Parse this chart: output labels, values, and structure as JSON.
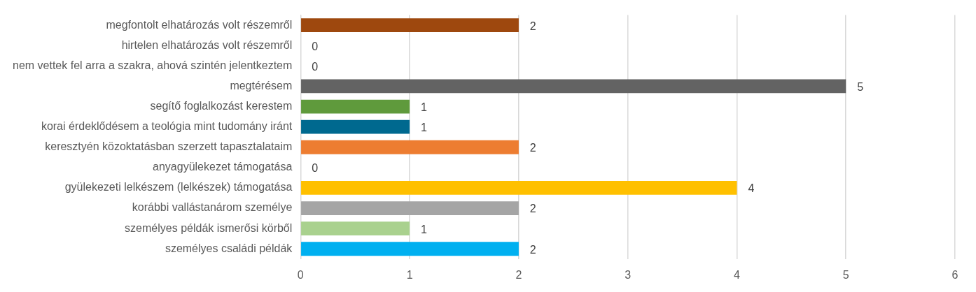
{
  "chart_data": {
    "type": "bar",
    "orientation": "horizontal",
    "categories": [
      "megfontolt elhatározás volt részemről",
      "hirtelen elhatározás volt részemről",
      "nem vettek fel arra a szakra, ahová szintén jelentkeztem",
      "megtérésem",
      "segítő foglalkozást kerestem",
      "korai érdeklődésem a teológia mint tudomány iránt",
      "keresztyén közoktatásban szerzett tapasztalataim",
      "anyagyülekezet támogatása",
      "gyülekezeti lelkészem (lelkészek) támogatása",
      "korábbi vallástanárom személye",
      "személyes példák ismerősi körből",
      "személyes családi példák"
    ],
    "values": [
      2,
      0,
      0,
      5,
      1,
      1,
      2,
      0,
      4,
      2,
      1,
      2
    ],
    "colors": [
      "#9e480e",
      "#ffffff",
      "#ffffff",
      "#636363",
      "#5f9a3c",
      "#00698f",
      "#ed7d31",
      "#ffffff",
      "#ffc000",
      "#a5a5a5",
      "#a9d18e",
      "#00b0f0"
    ],
    "xlim": [
      0,
      6
    ],
    "xticks": [
      0,
      1,
      2,
      3,
      4,
      5,
      6
    ],
    "grid": "x",
    "data_labels": true,
    "legend": false
  }
}
